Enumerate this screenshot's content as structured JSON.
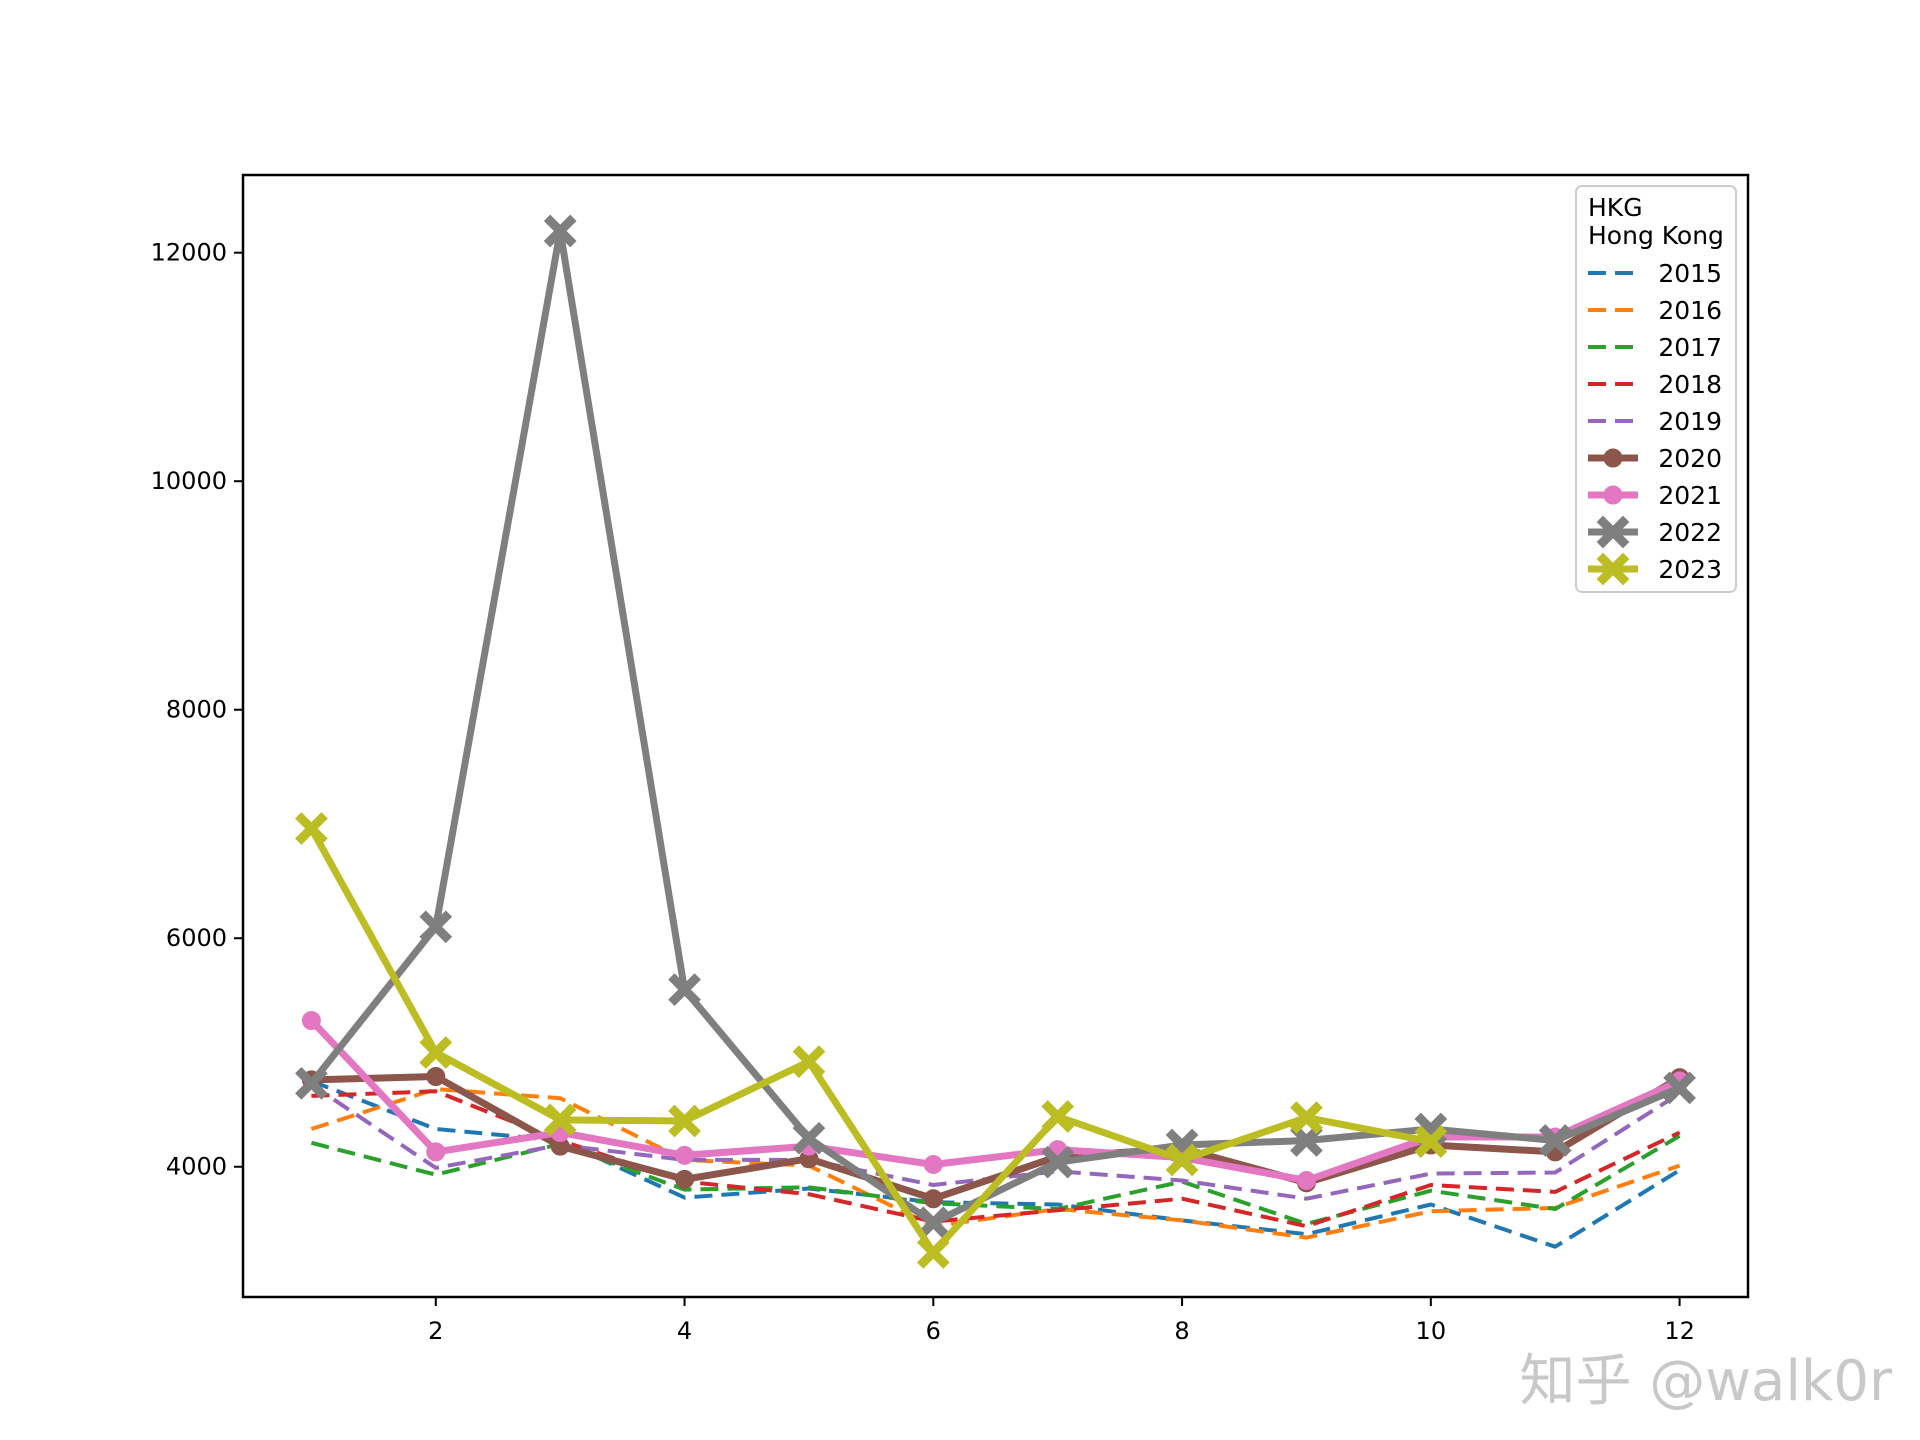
{
  "chart_data": {
    "type": "line",
    "title": "",
    "xlabel": "",
    "ylabel": "",
    "xlim": [
      0.45,
      12.55
    ],
    "ylim": [
      2860,
      12680
    ],
    "xticks": [
      2,
      4,
      6,
      8,
      10,
      12
    ],
    "yticks": [
      4000,
      6000,
      8000,
      10000,
      12000
    ],
    "grid": false,
    "legend_position": "top-right",
    "legend_title": [
      "HKG",
      "Hong Kong"
    ],
    "x": [
      1,
      2,
      3,
      4,
      5,
      6,
      7,
      8,
      9,
      10,
      11,
      12
    ],
    "series": [
      {
        "name": "2015",
        "color": "#1f77b4",
        "style": "dashed",
        "marker": "none",
        "values": [
          4750,
          4330,
          4230,
          3730,
          3810,
          3690,
          3670,
          3530,
          3410,
          3670,
          3300,
          3970
        ]
      },
      {
        "name": "2016",
        "color": "#ff7f0e",
        "style": "dashed",
        "marker": "none",
        "values": [
          4330,
          4680,
          4600,
          4060,
          4010,
          3480,
          3630,
          3530,
          3380,
          3610,
          3640,
          4010
        ]
      },
      {
        "name": "2017",
        "color": "#2ca02c",
        "style": "dashed",
        "marker": "none",
        "values": [
          4210,
          3930,
          4200,
          3800,
          3820,
          3680,
          3630,
          3870,
          3500,
          3790,
          3630,
          4270
        ]
      },
      {
        "name": "2018",
        "color": "#d62728",
        "style": "dashed",
        "marker": "none",
        "values": [
          4620,
          4660,
          4230,
          3870,
          3760,
          3520,
          3620,
          3720,
          3480,
          3840,
          3780,
          4300
        ]
      },
      {
        "name": "2019",
        "color": "#9467bd",
        "style": "dashed",
        "marker": "none",
        "values": [
          4720,
          3990,
          4190,
          4060,
          4060,
          3840,
          3960,
          3880,
          3720,
          3940,
          3950,
          4640
        ]
      },
      {
        "name": "2020",
        "color": "#8c564b",
        "style": "solid",
        "marker": "circle",
        "values": [
          4760,
          4790,
          4180,
          3890,
          4070,
          3720,
          4090,
          4160,
          3860,
          4190,
          4130,
          4780
        ]
      },
      {
        "name": "2021",
        "color": "#e377c2",
        "style": "solid",
        "marker": "circle",
        "values": [
          5280,
          4130,
          4300,
          4100,
          4180,
          4020,
          4150,
          4080,
          3880,
          4260,
          4260,
          4750
        ]
      },
      {
        "name": "2022",
        "color": "#7f7f7f",
        "style": "solid",
        "marker": "x",
        "values": [
          4730,
          6100,
          12190,
          5550,
          4250,
          3510,
          4040,
          4190,
          4230,
          4330,
          4230,
          4690
        ]
      },
      {
        "name": "2023",
        "color": "#bcbd22",
        "style": "solid",
        "marker": "x",
        "values": [
          6960,
          5000,
          4410,
          4400,
          4920,
          3250,
          4440,
          4060,
          4430,
          4220,
          null,
          null
        ]
      }
    ]
  },
  "watermark": "知乎 @walk0r"
}
